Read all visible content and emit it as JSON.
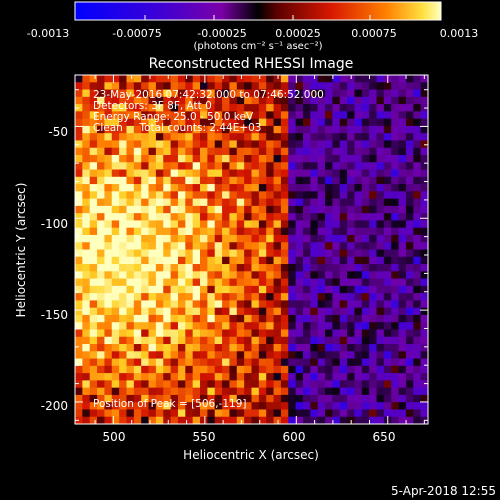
{
  "chart_data": {
    "type": "heatmap",
    "title": "Reconstructed RHESSI Image",
    "xlabel": "Heliocentric X (arcsec)",
    "ylabel": "Heliocentric Y (arcsec)",
    "x_ticks": [
      "500",
      "550",
      "600",
      "650"
    ],
    "y_ticks": [
      "-50",
      "-100",
      "-150",
      "-200"
    ],
    "xlim": [
      479,
      672
    ],
    "ylim": [
      -212,
      -22
    ],
    "colorbar": {
      "ticks": [
        "-0.0013",
        "-0.00075",
        "-0.00025",
        "0.00025",
        "0.00075",
        "0.0013"
      ],
      "range": [
        -0.0013,
        0.0013
      ],
      "units": "(photons cm⁻² s⁻¹ asec⁻²)"
    },
    "annotations": [
      "23-May-2016 07:42:32.000 to 07:46:52.000",
      "Detectors: 3F 8F, Att 0",
      "Energy Range: 25.0 - 50.0 keV",
      "Clean     Total counts: 2.44E+03"
    ],
    "peak_label": "Position of Peak = [506,-119]",
    "peak_position": [
      506,
      -119
    ],
    "timestamp": "5-Apr-2018 12:55"
  }
}
